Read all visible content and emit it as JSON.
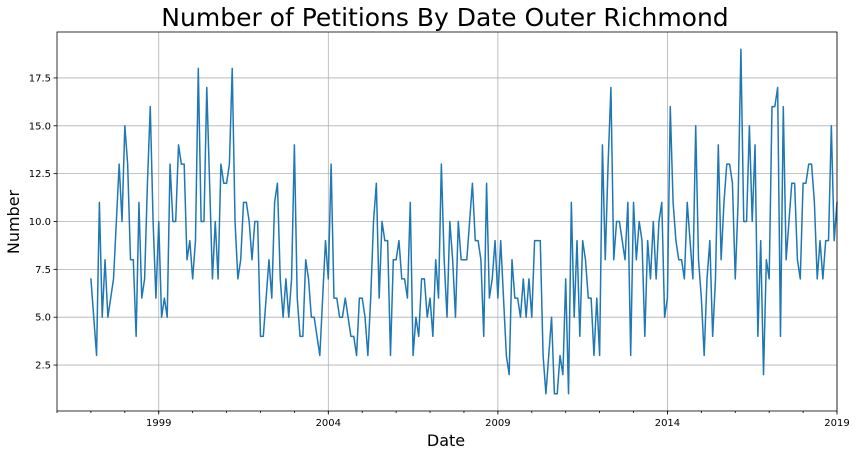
{
  "chart_data": {
    "type": "line",
    "title": "Number of Petitions By Date Outer Richmond",
    "xlabel": "Date",
    "ylabel": "Number",
    "x_start": "1997-01",
    "x_frequency": "monthly",
    "xlim": [
      "1996-01",
      "2019-01"
    ],
    "ylim": [
      0.1,
      19.9
    ],
    "xticks": [
      {
        "value": "1999-01",
        "label": "1999"
      },
      {
        "value": "2004-01",
        "label": "2004"
      },
      {
        "value": "2009-01",
        "label": "2009"
      },
      {
        "value": "2014-01",
        "label": "2014"
      },
      {
        "value": "2019-01",
        "label": "2019"
      }
    ],
    "x_minor_ticks": "yearly",
    "yticks": [
      2.5,
      5.0,
      7.5,
      10.0,
      12.5,
      15.0,
      17.5
    ],
    "ytick_labels": [
      "2.5",
      "5.0",
      "7.5",
      "10.0",
      "12.5",
      "15.0",
      "17.5"
    ],
    "grid": true,
    "series": [
      {
        "color": "#1f77b4",
        "values": [
          7,
          5,
          3,
          11,
          5,
          8,
          5,
          6,
          7,
          10,
          13,
          10,
          15,
          13,
          8,
          8,
          4,
          11,
          6,
          7,
          12,
          16,
          10,
          6,
          10,
          5,
          6,
          5,
          13,
          10,
          10,
          14,
          13,
          13,
          8,
          9,
          7,
          9,
          18,
          10,
          10,
          17,
          12,
          7,
          10,
          7,
          13,
          12,
          12,
          13,
          18,
          10,
          7,
          8,
          11,
          11,
          10,
          8,
          10,
          10,
          4,
          4,
          6,
          8,
          6,
          11,
          12,
          7,
          5,
          7,
          5,
          7,
          14,
          6,
          4,
          4,
          8,
          7,
          5,
          5,
          4,
          3,
          6,
          9,
          7,
          13,
          6,
          6,
          5,
          5,
          6,
          5,
          4,
          4,
          3,
          6,
          6,
          5,
          3,
          6,
          10,
          12,
          6,
          10,
          9,
          9,
          3,
          8,
          8,
          9,
          7,
          7,
          6,
          11,
          3,
          5,
          4,
          7,
          7,
          5,
          6,
          4,
          8,
          6,
          13,
          8,
          5,
          10,
          8,
          5,
          10,
          8,
          8,
          8,
          10,
          12,
          9,
          9,
          8,
          4,
          12,
          6,
          7,
          9,
          6,
          9,
          6,
          3,
          2,
          8,
          6,
          6,
          5,
          7,
          5,
          7,
          5,
          9,
          9,
          9,
          3,
          1,
          3,
          5,
          1,
          1,
          3,
          2,
          7,
          1,
          11,
          5,
          9,
          4,
          9,
          8,
          6,
          6,
          3,
          6,
          3,
          14,
          8,
          13,
          17,
          8,
          10,
          10,
          9,
          8,
          11,
          3,
          11,
          8,
          10,
          9,
          4,
          9,
          7,
          10,
          7,
          10,
          11,
          5,
          6,
          16,
          11,
          9,
          8,
          8,
          7,
          11,
          9,
          7,
          15,
          8,
          6,
          3,
          7,
          9,
          4,
          7,
          14,
          8,
          11,
          13,
          13,
          12,
          7,
          11,
          19,
          10,
          10,
          15,
          10,
          14,
          4,
          9,
          2,
          8,
          7,
          16,
          16,
          17,
          4,
          16,
          8,
          10,
          12,
          12,
          8,
          7,
          12,
          12,
          13,
          13,
          11,
          7,
          9,
          7,
          9,
          9,
          15,
          9,
          11
        ]
      }
    ]
  }
}
